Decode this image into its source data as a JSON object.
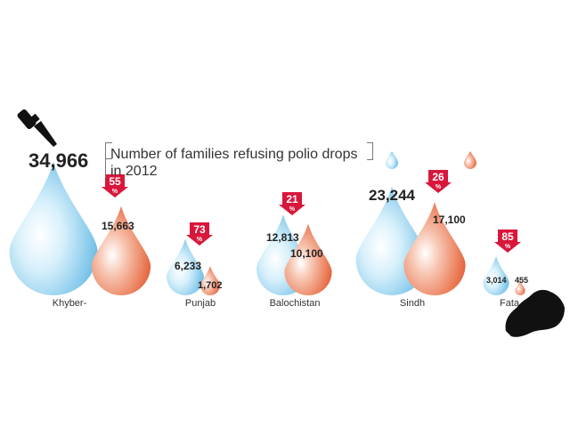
{
  "chart_data": {
    "type": "bar",
    "title": "Number of families refusing polio drops in 2012",
    "categories": [
      "Khyber-",
      "Punjab",
      "Balochistan",
      "Sindh",
      "Fata"
    ],
    "series": [
      {
        "name": "",
        "values": [
          34966,
          6233,
          12813,
          23244,
          3014
        ],
        "labels": [
          "34,966",
          "6,233",
          "12,813",
          "23,244",
          "3,014"
        ]
      },
      {
        "name": "",
        "values": [
          15663,
          1702,
          10100,
          17100,
          455
        ],
        "labels": [
          "15,663",
          "1,702",
          "10,100",
          "17,100",
          "455"
        ]
      }
    ],
    "drop_percent": [
      "55",
      "73",
      "21",
      "26",
      "85"
    ],
    "percent_symbol": "%",
    "colors": {
      "series1": "#8fd0ef",
      "series2": "#ee7e5a",
      "arrow": "#d9173b",
      "icon": "#111111"
    }
  }
}
